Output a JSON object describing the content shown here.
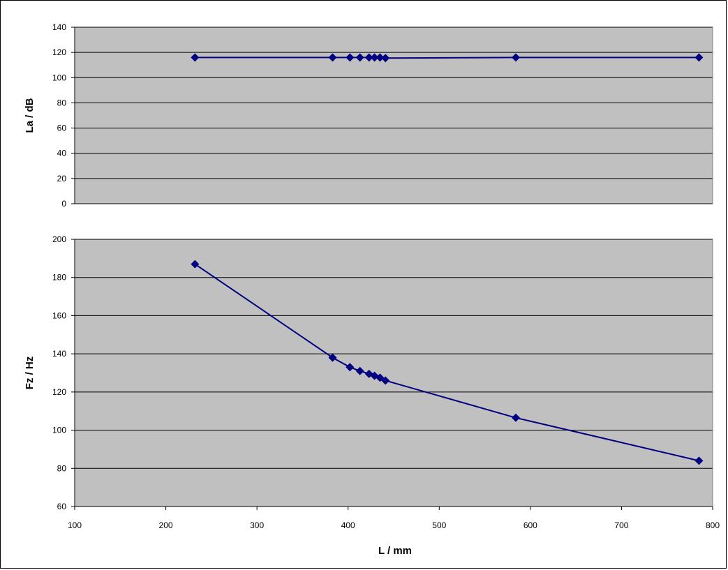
{
  "chart_data": [
    {
      "type": "line",
      "title": "",
      "xlabel": "",
      "ylabel": "La / dB",
      "xlim": [
        100,
        800
      ],
      "ylim": [
        0,
        140
      ],
      "yticks": [
        0,
        20,
        40,
        60,
        80,
        100,
        120,
        140
      ],
      "grid": true,
      "plot_bg": "#C0C0C0",
      "series_color": "#000080",
      "series": [
        {
          "x": [
            232,
            383,
            402,
            413,
            423,
            429,
            435,
            441,
            584,
            785
          ],
          "y": [
            116,
            116,
            116,
            116,
            116,
            116,
            116,
            115.5,
            116,
            116
          ]
        }
      ]
    },
    {
      "type": "line",
      "title": "",
      "xlabel": "L / mm",
      "ylabel": "Fz / Hz",
      "xlim": [
        100,
        800
      ],
      "ylim": [
        60,
        200
      ],
      "xticks": [
        100,
        200,
        300,
        400,
        500,
        600,
        700,
        800
      ],
      "yticks": [
        60,
        80,
        100,
        120,
        140,
        160,
        180,
        200
      ],
      "grid": true,
      "plot_bg": "#C0C0C0",
      "series_color": "#000080",
      "series": [
        {
          "x": [
            232,
            383,
            402,
            413,
            423,
            429,
            435,
            441,
            584,
            785
          ],
          "y": [
            187,
            138,
            133,
            131,
            129.5,
            128.5,
            127.5,
            126,
            106.5,
            84
          ]
        }
      ]
    }
  ]
}
